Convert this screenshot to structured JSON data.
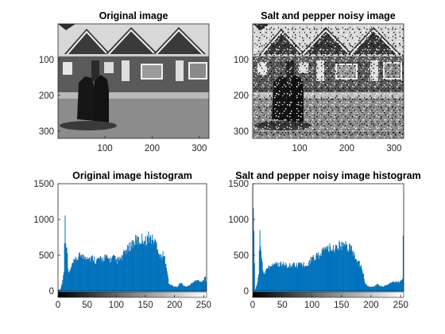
{
  "chart_data": [
    {
      "type": "image",
      "title": "Original image",
      "xticks": [
        100,
        200,
        300
      ],
      "yticks": [
        100,
        200,
        300
      ],
      "xlim": [
        0.5,
        320.5
      ],
      "ylim": [
        0.5,
        320.5
      ],
      "colormap": "gray"
    },
    {
      "type": "image",
      "title": "Salt and pepper noisy image",
      "xticks": [
        100,
        200,
        300
      ],
      "yticks": [
        100,
        200,
        300
      ],
      "xlim": [
        0.5,
        320.5
      ],
      "ylim": [
        0.5,
        320.5
      ],
      "colormap": "gray"
    },
    {
      "type": "bar",
      "title": "Original image histogram",
      "xticks": [
        0,
        50,
        100,
        150,
        200,
        250
      ],
      "yticks": [
        0,
        500,
        1000,
        1500
      ],
      "xlim": [
        0,
        255
      ],
      "ylim": [
        0,
        1500
      ],
      "bar_color": "#0072bd",
      "colorbar": "gray",
      "x": [
        0,
        4,
        6,
        8,
        10,
        11,
        12,
        13,
        14,
        15,
        16,
        17,
        18,
        20,
        25,
        30,
        35,
        40,
        45,
        50,
        55,
        60,
        65,
        70,
        75,
        80,
        85,
        90,
        95,
        100,
        105,
        110,
        115,
        120,
        125,
        130,
        135,
        140,
        145,
        150,
        155,
        160,
        165,
        170,
        175,
        180,
        185,
        190,
        195,
        200,
        205,
        210,
        215,
        220,
        225,
        230,
        235,
        240,
        245,
        250,
        253,
        255
      ],
      "values": [
        20,
        20,
        80,
        150,
        300,
        720,
        980,
        760,
        650,
        620,
        480,
        320,
        260,
        270,
        380,
        430,
        470,
        520,
        460,
        500,
        450,
        470,
        420,
        450,
        430,
        480,
        450,
        440,
        470,
        420,
        440,
        460,
        560,
        580,
        650,
        680,
        720,
        690,
        740,
        700,
        760,
        730,
        700,
        650,
        480,
        500,
        420,
        100,
        80,
        60,
        60,
        120,
        80,
        60,
        80,
        110,
        140,
        150,
        130,
        160,
        230,
        10
      ]
    },
    {
      "type": "bar",
      "title": "Salt and pepper noisy image histogram",
      "xticks": [
        0,
        50,
        100,
        150,
        200,
        250
      ],
      "yticks": [
        0,
        500,
        1000,
        1500
      ],
      "xlim": [
        0,
        255
      ],
      "ylim": [
        0,
        1500
      ],
      "bar_color": "#0072bd",
      "colorbar": "gray",
      "x": [
        0,
        4,
        6,
        8,
        10,
        11,
        12,
        13,
        14,
        15,
        16,
        17,
        18,
        20,
        25,
        30,
        35,
        40,
        45,
        50,
        55,
        60,
        65,
        70,
        75,
        80,
        85,
        90,
        95,
        100,
        105,
        110,
        115,
        120,
        125,
        130,
        135,
        140,
        145,
        150,
        155,
        160,
        165,
        170,
        175,
        180,
        185,
        190,
        195,
        200,
        205,
        210,
        215,
        220,
        225,
        230,
        235,
        240,
        245,
        250,
        253,
        255
      ],
      "values": [
        1500,
        15,
        60,
        120,
        250,
        520,
        800,
        600,
        520,
        480,
        380,
        280,
        240,
        250,
        320,
        360,
        370,
        380,
        370,
        380,
        360,
        370,
        350,
        360,
        350,
        380,
        360,
        380,
        400,
        450,
        480,
        500,
        520,
        560,
        600,
        620,
        600,
        610,
        640,
        620,
        660,
        620,
        600,
        550,
        400,
        380,
        300,
        100,
        70,
        60,
        60,
        100,
        70,
        60,
        80,
        100,
        120,
        130,
        120,
        140,
        180,
        1500
      ]
    }
  ]
}
